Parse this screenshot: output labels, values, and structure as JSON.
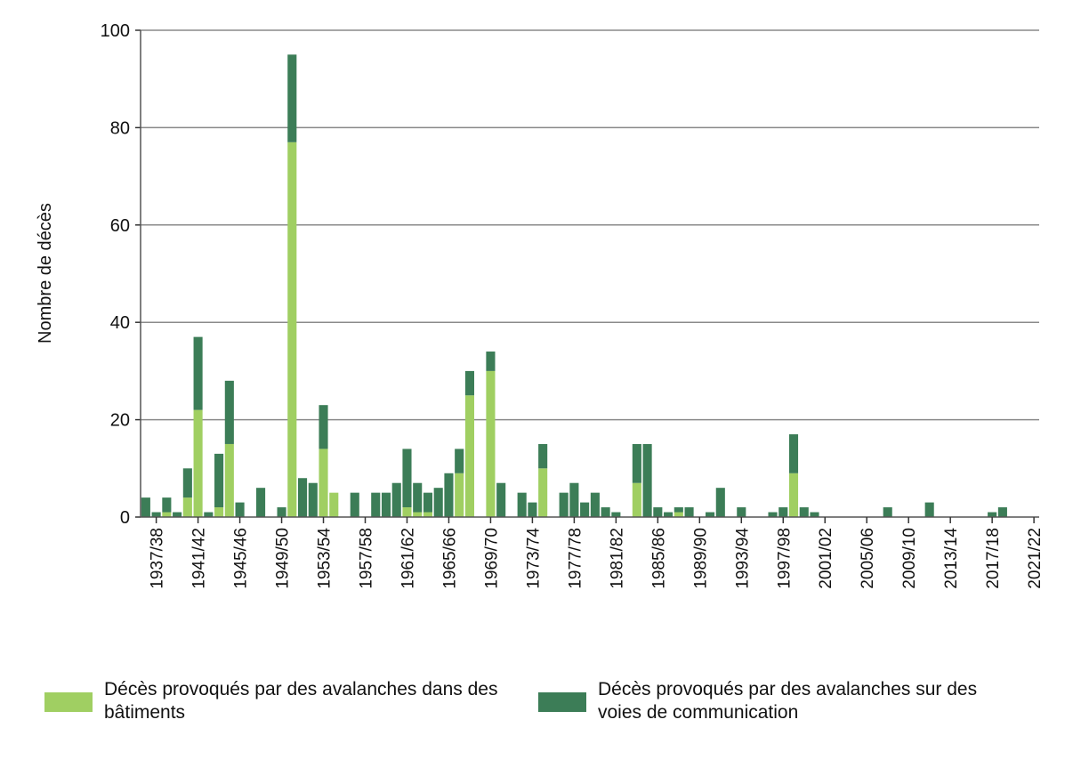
{
  "chart_data": {
    "type": "bar",
    "stacked": true,
    "title": "",
    "xlabel": "",
    "ylabel": "Nombre de décès",
    "ylim": [
      0,
      100
    ],
    "yticks": [
      0,
      20,
      40,
      60,
      80,
      100
    ],
    "grid": true,
    "legend_placement": "bottom",
    "categories": [
      "1936/37",
      "1937/38",
      "1938/39",
      "1939/40",
      "1940/41",
      "1941/42",
      "1942/43",
      "1943/44",
      "1944/45",
      "1945/46",
      "1946/47",
      "1947/48",
      "1948/49",
      "1949/50",
      "1950/51",
      "1951/52",
      "1952/53",
      "1953/54",
      "1954/55",
      "1955/56",
      "1956/57",
      "1957/58",
      "1958/59",
      "1959/60",
      "1960/61",
      "1961/62",
      "1962/63",
      "1963/64",
      "1964/65",
      "1965/66",
      "1966/67",
      "1967/68",
      "1968/69",
      "1969/70",
      "1970/71",
      "1971/72",
      "1972/73",
      "1973/74",
      "1974/75",
      "1975/76",
      "1976/77",
      "1977/78",
      "1978/79",
      "1979/80",
      "1980/81",
      "1981/82",
      "1982/83",
      "1983/84",
      "1984/85",
      "1985/86",
      "1986/87",
      "1987/88",
      "1988/89",
      "1989/90",
      "1990/91",
      "1991/92",
      "1992/93",
      "1993/94",
      "1994/95",
      "1995/96",
      "1996/97",
      "1997/98",
      "1998/99",
      "1999/00",
      "2000/01",
      "2001/02",
      "2002/03",
      "2003/04",
      "2004/05",
      "2005/06",
      "2006/07",
      "2007/08",
      "2008/09",
      "2009/10",
      "2010/11",
      "2011/12",
      "2012/13",
      "2013/14",
      "2014/15",
      "2015/16",
      "2016/17",
      "2017/18",
      "2018/19",
      "2019/20",
      "2020/21",
      "2021/22"
    ],
    "tick_labels": [
      "1937/38",
      "1941/42",
      "1945/46",
      "1949/50",
      "1953/54",
      "1957/58",
      "1961/62",
      "1965/66",
      "1969/70",
      "1973/74",
      "1977/78",
      "1981/82",
      "1985/86",
      "1989/90",
      "1993/94",
      "1997/98",
      "2001/02",
      "2005/06",
      "2009/10",
      "2013/14",
      "2017/18",
      "2021/22"
    ],
    "series": [
      {
        "name": "Décès provoqués par des avalanches dans des bâtiments",
        "color": "#a0cf62",
        "values": [
          0,
          0,
          1,
          0,
          4,
          22,
          0,
          2,
          15,
          0,
          0,
          0,
          0,
          0,
          77,
          0,
          0,
          14,
          5,
          0,
          0,
          0,
          0,
          0,
          0,
          2,
          1,
          1,
          0,
          0,
          9,
          25,
          0,
          30,
          0,
          0,
          0,
          0,
          10,
          0,
          0,
          0,
          0,
          0,
          0,
          0,
          0,
          7,
          0,
          0,
          0,
          1,
          0,
          0,
          0,
          0,
          0,
          0,
          0,
          0,
          0,
          0,
          9,
          0,
          0,
          0,
          0,
          0,
          0,
          0,
          0,
          0,
          0,
          0,
          0,
          0,
          0,
          0,
          0,
          0,
          0,
          0,
          0,
          0,
          0,
          0
        ]
      },
      {
        "name": "Décès provoqués par des avalanches sur des voies de communication",
        "color": "#3c7d57",
        "values": [
          4,
          1,
          3,
          1,
          6,
          15,
          1,
          11,
          13,
          3,
          0,
          6,
          0,
          2,
          18,
          8,
          7,
          9,
          0,
          0,
          5,
          0,
          5,
          5,
          7,
          12,
          6,
          4,
          6,
          9,
          5,
          5,
          0,
          4,
          7,
          0,
          5,
          3,
          5,
          0,
          5,
          7,
          3,
          5,
          2,
          1,
          0,
          8,
          15,
          2,
          1,
          1,
          2,
          0,
          1,
          6,
          0,
          2,
          0,
          0,
          1,
          2,
          8,
          2,
          1,
          0,
          0,
          0,
          0,
          0,
          0,
          2,
          0,
          0,
          0,
          3,
          0,
          0,
          0,
          0,
          0,
          1,
          2,
          0,
          0,
          0
        ]
      }
    ]
  },
  "legend": {
    "item1": "Décès provoqués par des avalanches dans des bâtiments",
    "item2": "Décès provoqués par des avalanches sur des voies de communication"
  }
}
